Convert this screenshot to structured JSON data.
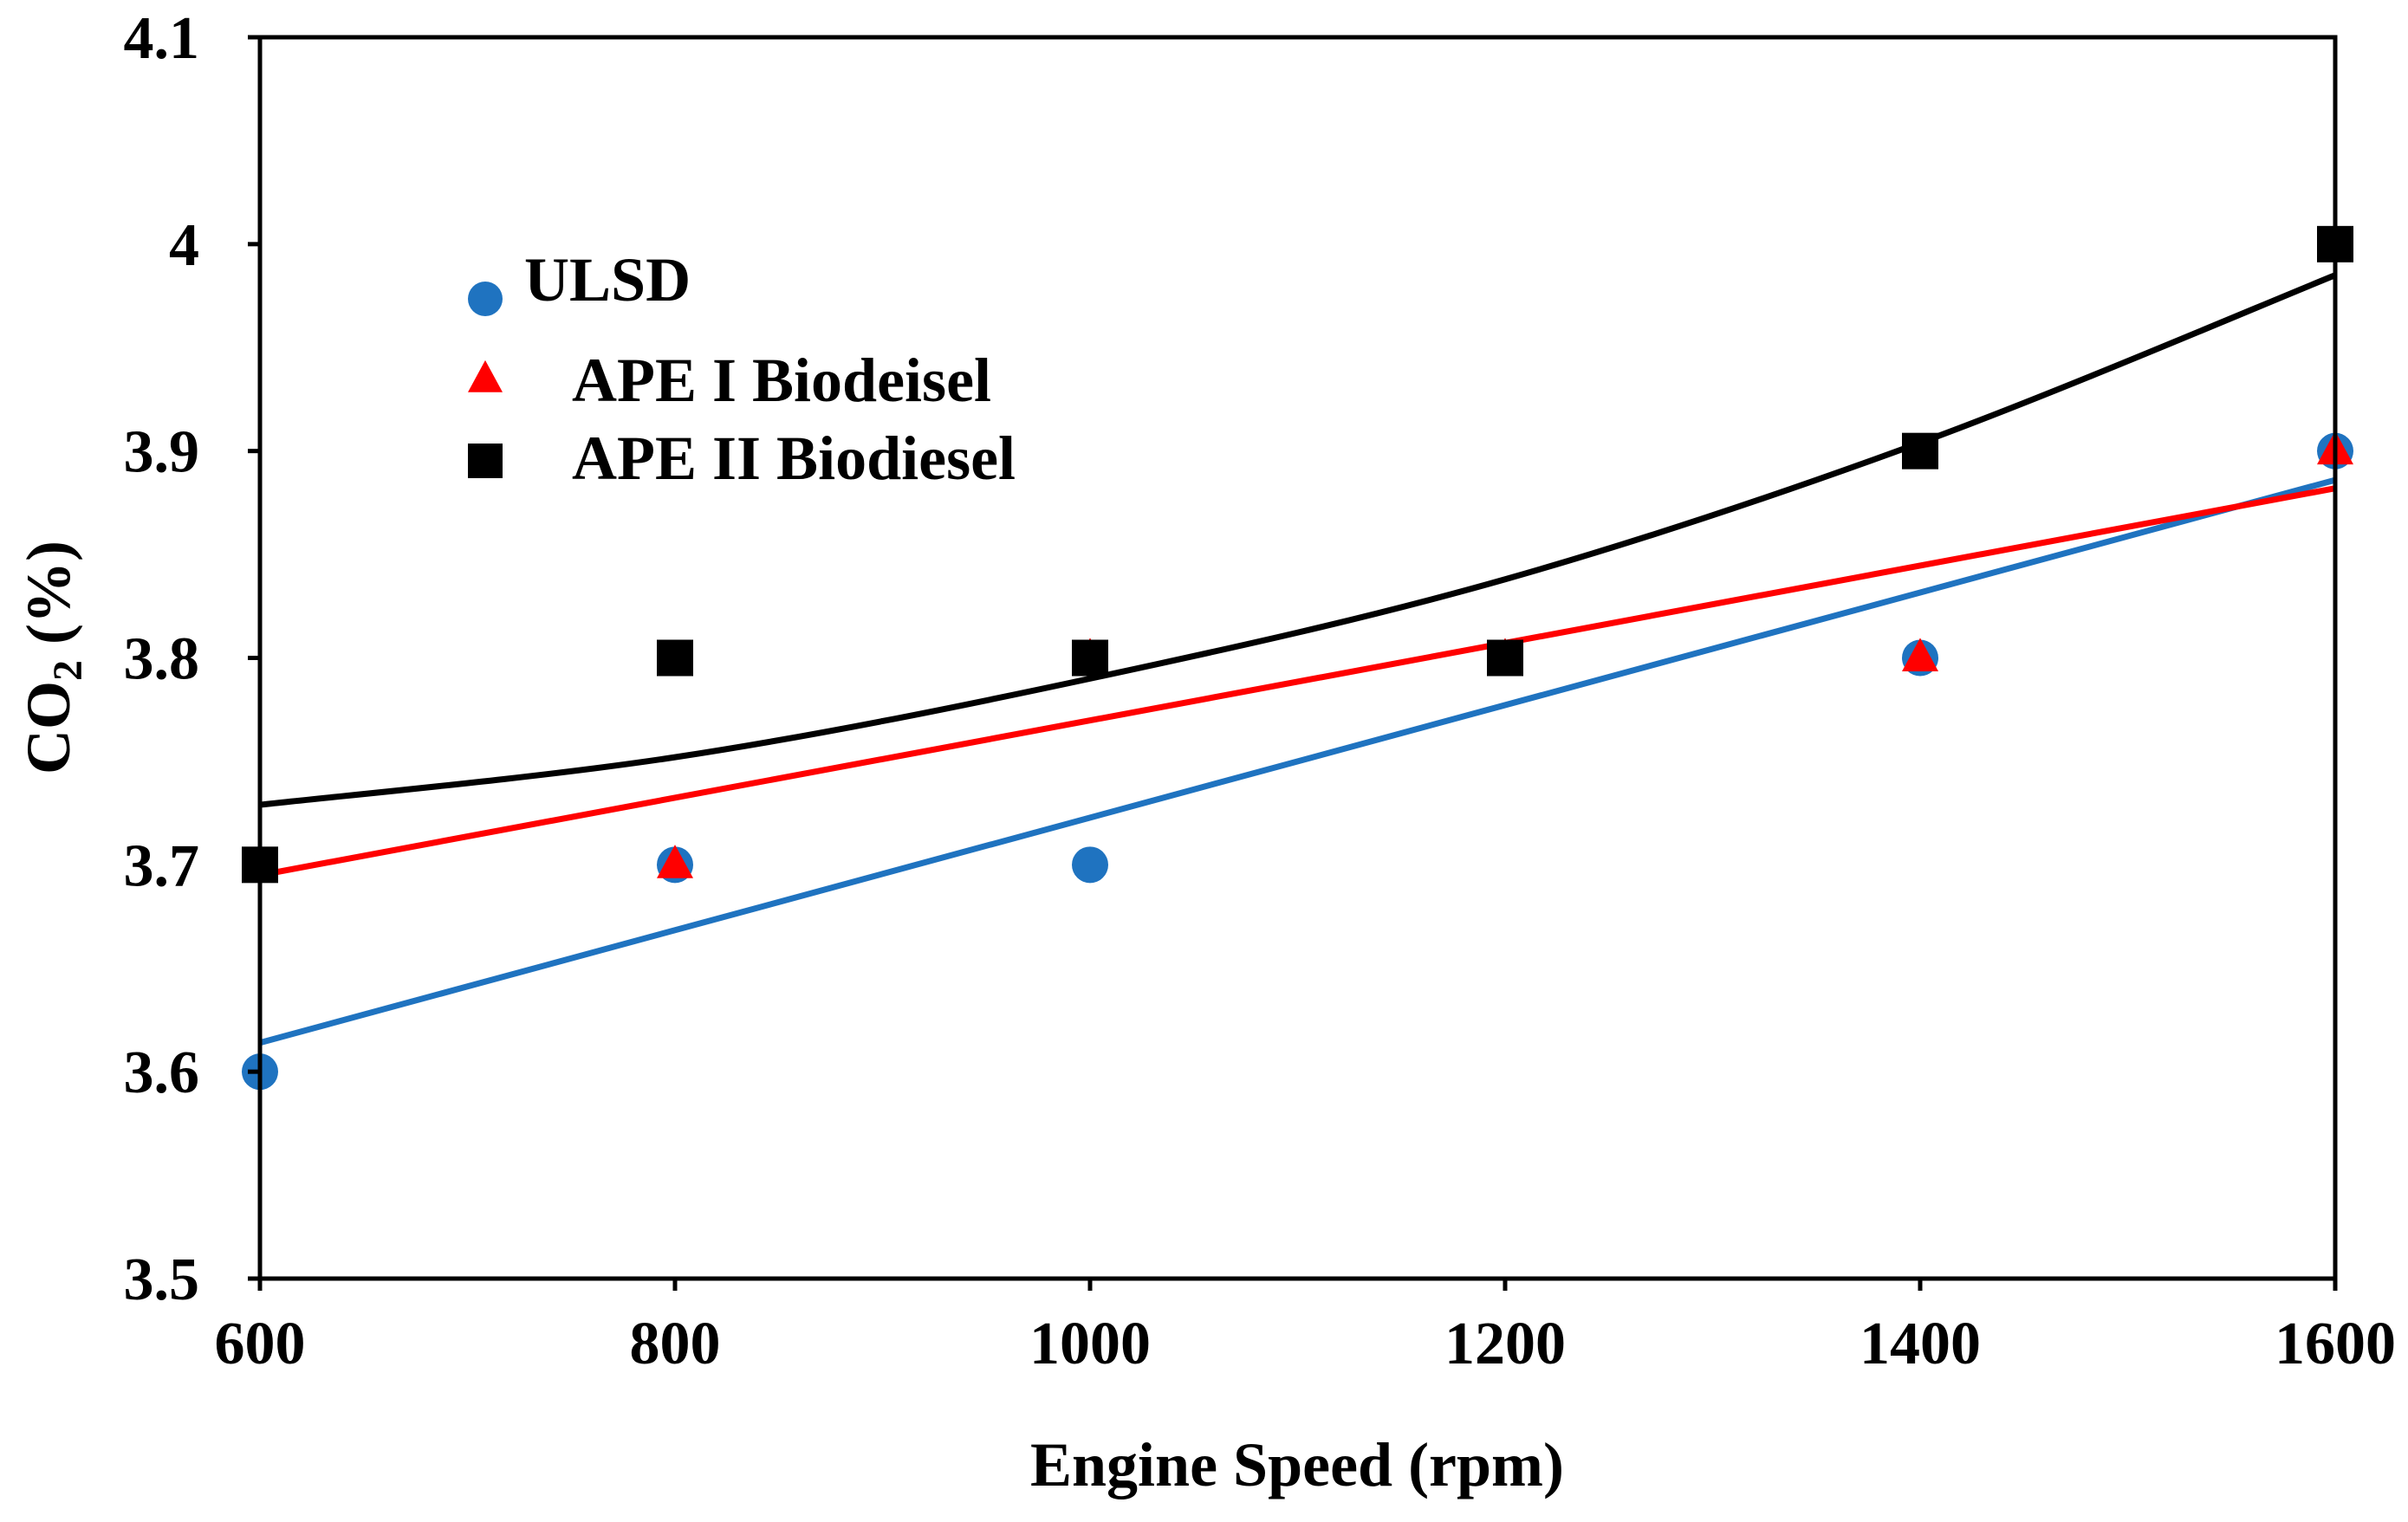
{
  "chart_data": {
    "type": "scatter",
    "title": "",
    "xlabel": "Engine Speed (rpm)",
    "ylabel": {
      "main": "CO",
      "subscript": "2",
      "suffix": " (%)"
    },
    "xlim": [
      600,
      1600
    ],
    "ylim": [
      3.5,
      4.1
    ],
    "x_ticks": [
      "600",
      "800",
      "1000",
      "1200",
      "1400",
      "1600"
    ],
    "y_ticks": [
      "3.5",
      "3.6",
      "3.7",
      "3.8",
      "3.9",
      "4",
      "4.1"
    ],
    "grid": false,
    "legend_position": "top-left",
    "x": [
      600,
      800,
      1000,
      1200,
      1400,
      1600
    ],
    "series": [
      {
        "name": "ULSD",
        "marker": "circle",
        "color": "#1f73c0",
        "values": [
          3.6,
          3.7,
          3.7,
          3.8,
          3.8,
          3.9
        ],
        "trendline": {
          "type": "linear",
          "color": "#1f73c0",
          "points": [
            [
              600,
              3.614
            ],
            [
              1600,
              3.886
            ]
          ]
        }
      },
      {
        "name": "APE I Biodeisel",
        "marker": "triangle",
        "color": "#ff0000",
        "values": [
          3.7,
          3.7,
          3.8,
          3.8,
          3.8,
          3.9
        ],
        "trendline": {
          "type": "linear",
          "color": "#ff0000",
          "points": [
            [
              600,
              3.695
            ],
            [
              1600,
              3.882
            ]
          ]
        }
      },
      {
        "name": "APE II Biodiesel",
        "marker": "square",
        "color": "#000000",
        "values": [
          3.7,
          3.8,
          3.8,
          3.8,
          3.9,
          4.0
        ],
        "trendline": {
          "type": "quadratic",
          "color": "#000000",
          "points": [
            [
              600,
              3.729
            ],
            [
              800,
              3.752
            ],
            [
              1000,
              3.79
            ],
            [
              1200,
              3.838
            ],
            [
              1400,
              3.904
            ],
            [
              1600,
              3.985
            ]
          ]
        }
      }
    ]
  }
}
